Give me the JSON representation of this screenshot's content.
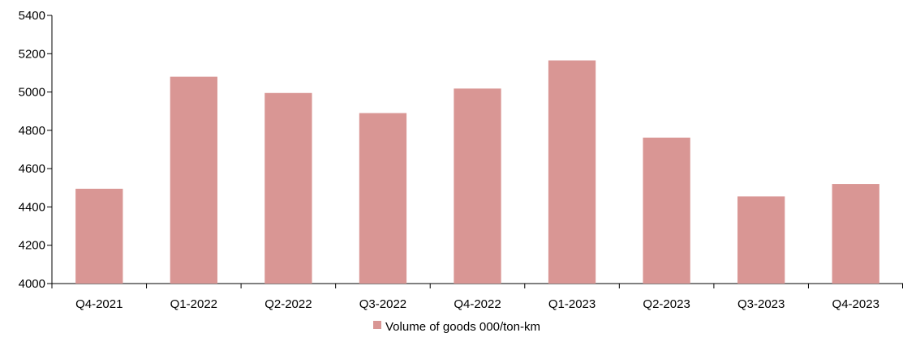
{
  "colors": {
    "bar": "#d99694",
    "axis": "#000000",
    "text": "#000000",
    "background": "#ffffff"
  },
  "chart_data": {
    "type": "bar",
    "title": "",
    "xlabel": "",
    "ylabel": "",
    "categories": [
      "Q4-2021",
      "Q1-2022",
      "Q2-2022",
      "Q3-2022",
      "Q4-2022",
      "Q1-2023",
      "Q2-2023",
      "Q3-2023",
      "Q4-2023"
    ],
    "series": [
      {
        "name": "Volume of goods  000/ton-km",
        "values": [
          4495,
          5080,
          4995,
          4890,
          5018,
          5165,
          4762,
          4455,
          4520
        ]
      }
    ],
    "ylim": [
      4000,
      5400
    ],
    "yticks": [
      "4000",
      "4200",
      "4400",
      "4600",
      "4800",
      "5000",
      "5200",
      "5400"
    ],
    "grid": false,
    "legend_position": "bottom-center"
  }
}
